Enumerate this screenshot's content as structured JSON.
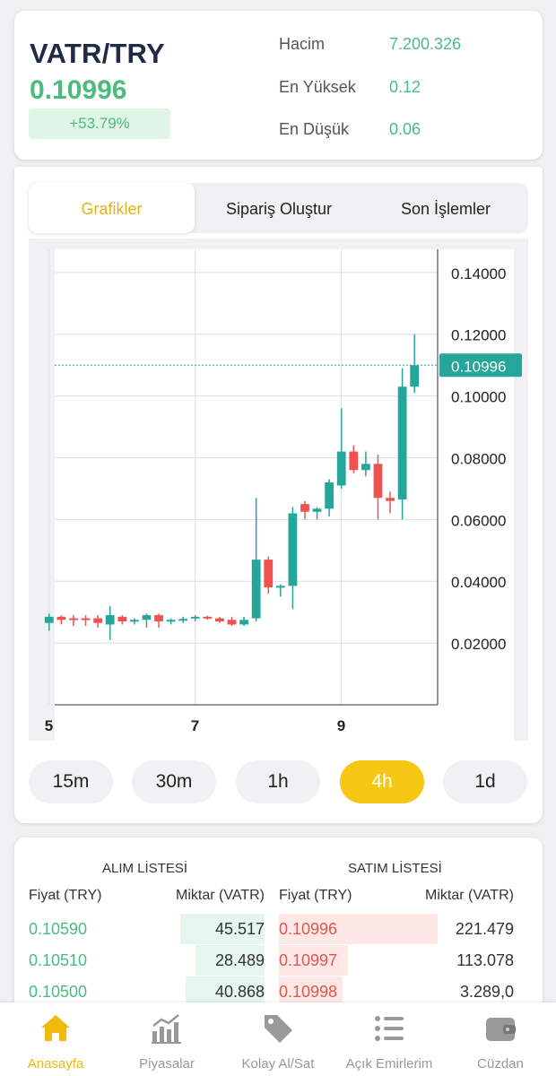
{
  "header": {
    "pair": "VATR/TRY",
    "last_price": "0.10996",
    "change": "+53.79%",
    "stats": [
      {
        "label": "Hacim",
        "value": "7.200.326"
      },
      {
        "label": "En Yüksek",
        "value": "0.12"
      },
      {
        "label": "En Düşük",
        "value": "0.06"
      }
    ]
  },
  "tabs": [
    {
      "label": "Grafikler",
      "active": true
    },
    {
      "label": "Sipariş Oluştur",
      "active": false
    },
    {
      "label": "Son İşlemler",
      "active": false
    }
  ],
  "chart_data": {
    "type": "candlestick",
    "y_ticks": [
      "0.14000",
      "0.12000",
      "0.10000",
      "0.08000",
      "0.06000",
      "0.04000",
      "0.02000"
    ],
    "y_tick_values": [
      0.14,
      0.12,
      0.1,
      0.08,
      0.06,
      0.04,
      0.02
    ],
    "ylim": [
      0.0,
      0.1475
    ],
    "x_ticks": [
      "5",
      "7",
      "9"
    ],
    "current_price_label": "0.10996",
    "current_price": 0.10996,
    "colors": {
      "up": "#26a69a",
      "down": "#ef5350",
      "price_tag": "#26a69a"
    },
    "candles": [
      {
        "o": 0.0265,
        "h": 0.0295,
        "l": 0.024,
        "c": 0.0285
      },
      {
        "o": 0.0285,
        "h": 0.029,
        "l": 0.026,
        "c": 0.0275
      },
      {
        "o": 0.028,
        "h": 0.029,
        "l": 0.0255,
        "c": 0.0275
      },
      {
        "o": 0.028,
        "h": 0.029,
        "l": 0.0255,
        "c": 0.0275
      },
      {
        "o": 0.028,
        "h": 0.029,
        "l": 0.025,
        "c": 0.0265
      },
      {
        "o": 0.026,
        "h": 0.032,
        "l": 0.021,
        "c": 0.029
      },
      {
        "o": 0.0285,
        "h": 0.029,
        "l": 0.026,
        "c": 0.027
      },
      {
        "o": 0.0272,
        "h": 0.028,
        "l": 0.026,
        "c": 0.0275
      },
      {
        "o": 0.0275,
        "h": 0.0295,
        "l": 0.025,
        "c": 0.029
      },
      {
        "o": 0.029,
        "h": 0.0295,
        "l": 0.025,
        "c": 0.027
      },
      {
        "o": 0.027,
        "h": 0.028,
        "l": 0.026,
        "c": 0.0275
      },
      {
        "o": 0.0275,
        "h": 0.0285,
        "l": 0.0265,
        "c": 0.0278
      },
      {
        "o": 0.028,
        "h": 0.029,
        "l": 0.027,
        "c": 0.0285
      },
      {
        "o": 0.0285,
        "h": 0.0288,
        "l": 0.0275,
        "c": 0.028
      },
      {
        "o": 0.028,
        "h": 0.0285,
        "l": 0.0265,
        "c": 0.027
      },
      {
        "o": 0.0275,
        "h": 0.0285,
        "l": 0.0255,
        "c": 0.026
      },
      {
        "o": 0.026,
        "h": 0.0285,
        "l": 0.0255,
        "c": 0.0275
      },
      {
        "o": 0.028,
        "h": 0.067,
        "l": 0.027,
        "c": 0.047
      },
      {
        "o": 0.047,
        "h": 0.048,
        "l": 0.036,
        "c": 0.038
      },
      {
        "o": 0.038,
        "h": 0.039,
        "l": 0.035,
        "c": 0.0385
      },
      {
        "o": 0.0385,
        "h": 0.064,
        "l": 0.031,
        "c": 0.062
      },
      {
        "o": 0.065,
        "h": 0.066,
        "l": 0.06,
        "c": 0.0625
      },
      {
        "o": 0.0625,
        "h": 0.064,
        "l": 0.06,
        "c": 0.0635
      },
      {
        "o": 0.0635,
        "h": 0.073,
        "l": 0.061,
        "c": 0.072
      },
      {
        "o": 0.071,
        "h": 0.096,
        "l": 0.07,
        "c": 0.082
      },
      {
        "o": 0.082,
        "h": 0.084,
        "l": 0.075,
        "c": 0.076
      },
      {
        "o": 0.076,
        "h": 0.082,
        "l": 0.074,
        "c": 0.078
      },
      {
        "o": 0.078,
        "h": 0.081,
        "l": 0.06,
        "c": 0.067
      },
      {
        "o": 0.067,
        "h": 0.069,
        "l": 0.062,
        "c": 0.066
      },
      {
        "o": 0.0665,
        "h": 0.109,
        "l": 0.06,
        "c": 0.103
      },
      {
        "o": 0.103,
        "h": 0.12,
        "l": 0.101,
        "c": 0.10996
      }
    ],
    "x_tick_candle_index": [
      0,
      12,
      24
    ]
  },
  "intervals": [
    {
      "label": "15m",
      "active": false
    },
    {
      "label": "30m",
      "active": false
    },
    {
      "label": "1h",
      "active": false
    },
    {
      "label": "4h",
      "active": true
    },
    {
      "label": "1d",
      "active": false
    }
  ],
  "order_book": {
    "bid_title": "ALIM LİSTESİ",
    "ask_title": "SATIM LİSTESİ",
    "bid_price_header": "Fiyat (TRY)",
    "bid_amount_header": "Miktar (VATR)",
    "ask_price_header": "Fiyat (TRY)",
    "ask_amount_header": "Miktar (VATR)",
    "rows": [
      {
        "bid_price": "0.10590",
        "bid_amount": "45.517",
        "ask_price": "0.10996",
        "ask_amount": "221.479",
        "bid_depth": 0.16,
        "ask_depth": 0.3
      },
      {
        "bid_price": "0.10510",
        "bid_amount": "28.489",
        "ask_price": "0.10997",
        "ask_amount": "113.078",
        "bid_depth": 0.13,
        "ask_depth": 0.13
      },
      {
        "bid_price": "0.10500",
        "bid_amount": "40.868",
        "ask_price": "0.10998",
        "ask_amount": "3.289,0",
        "bid_depth": 0.15,
        "ask_depth": 0.12
      }
    ]
  },
  "bottom_nav": [
    {
      "label": "Anasayfa",
      "icon": "home-icon",
      "active": true
    },
    {
      "label": "Piyasalar",
      "icon": "bar-chart-icon",
      "active": false
    },
    {
      "label": "Kolay Al/Sat",
      "icon": "tag-icon",
      "active": false
    },
    {
      "label": "Açık Emirlerim",
      "icon": "list-icon",
      "active": false
    },
    {
      "label": "Cüzdan",
      "icon": "wallet-icon",
      "active": false
    }
  ]
}
